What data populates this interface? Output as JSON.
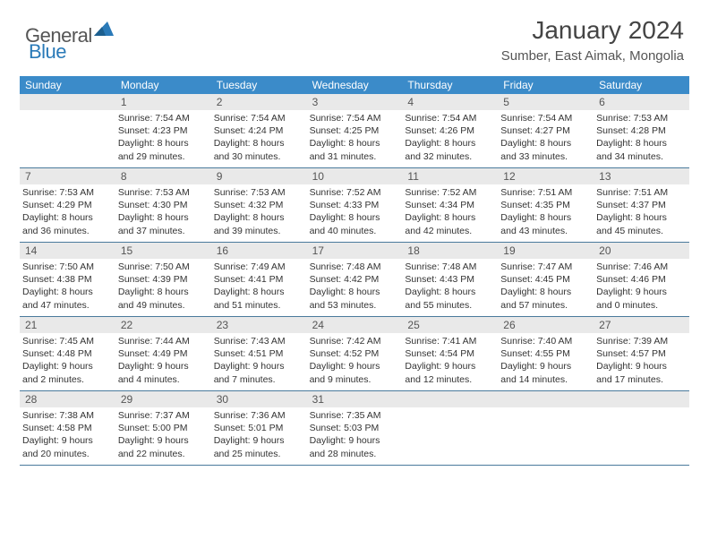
{
  "logo": {
    "general": "General",
    "blue": "Blue"
  },
  "title": "January 2024",
  "location": "Sumber, East Aimak, Mongolia",
  "colors": {
    "header_bg": "#3b8bc9",
    "header_text": "#ffffff",
    "daynum_bg": "#e9e9e9",
    "week_border": "#4a7a9c",
    "logo_gray": "#555555",
    "logo_blue": "#2a7ab8"
  },
  "day_names": [
    "Sunday",
    "Monday",
    "Tuesday",
    "Wednesday",
    "Thursday",
    "Friday",
    "Saturday"
  ],
  "weeks": [
    [
      {
        "day": "",
        "sunrise": "",
        "sunset": "",
        "daylight1": "",
        "daylight2": ""
      },
      {
        "day": "1",
        "sunrise": "Sunrise: 7:54 AM",
        "sunset": "Sunset: 4:23 PM",
        "daylight1": "Daylight: 8 hours",
        "daylight2": "and 29 minutes."
      },
      {
        "day": "2",
        "sunrise": "Sunrise: 7:54 AM",
        "sunset": "Sunset: 4:24 PM",
        "daylight1": "Daylight: 8 hours",
        "daylight2": "and 30 minutes."
      },
      {
        "day": "3",
        "sunrise": "Sunrise: 7:54 AM",
        "sunset": "Sunset: 4:25 PM",
        "daylight1": "Daylight: 8 hours",
        "daylight2": "and 31 minutes."
      },
      {
        "day": "4",
        "sunrise": "Sunrise: 7:54 AM",
        "sunset": "Sunset: 4:26 PM",
        "daylight1": "Daylight: 8 hours",
        "daylight2": "and 32 minutes."
      },
      {
        "day": "5",
        "sunrise": "Sunrise: 7:54 AM",
        "sunset": "Sunset: 4:27 PM",
        "daylight1": "Daylight: 8 hours",
        "daylight2": "and 33 minutes."
      },
      {
        "day": "6",
        "sunrise": "Sunrise: 7:53 AM",
        "sunset": "Sunset: 4:28 PM",
        "daylight1": "Daylight: 8 hours",
        "daylight2": "and 34 minutes."
      }
    ],
    [
      {
        "day": "7",
        "sunrise": "Sunrise: 7:53 AM",
        "sunset": "Sunset: 4:29 PM",
        "daylight1": "Daylight: 8 hours",
        "daylight2": "and 36 minutes."
      },
      {
        "day": "8",
        "sunrise": "Sunrise: 7:53 AM",
        "sunset": "Sunset: 4:30 PM",
        "daylight1": "Daylight: 8 hours",
        "daylight2": "and 37 minutes."
      },
      {
        "day": "9",
        "sunrise": "Sunrise: 7:53 AM",
        "sunset": "Sunset: 4:32 PM",
        "daylight1": "Daylight: 8 hours",
        "daylight2": "and 39 minutes."
      },
      {
        "day": "10",
        "sunrise": "Sunrise: 7:52 AM",
        "sunset": "Sunset: 4:33 PM",
        "daylight1": "Daylight: 8 hours",
        "daylight2": "and 40 minutes."
      },
      {
        "day": "11",
        "sunrise": "Sunrise: 7:52 AM",
        "sunset": "Sunset: 4:34 PM",
        "daylight1": "Daylight: 8 hours",
        "daylight2": "and 42 minutes."
      },
      {
        "day": "12",
        "sunrise": "Sunrise: 7:51 AM",
        "sunset": "Sunset: 4:35 PM",
        "daylight1": "Daylight: 8 hours",
        "daylight2": "and 43 minutes."
      },
      {
        "day": "13",
        "sunrise": "Sunrise: 7:51 AM",
        "sunset": "Sunset: 4:37 PM",
        "daylight1": "Daylight: 8 hours",
        "daylight2": "and 45 minutes."
      }
    ],
    [
      {
        "day": "14",
        "sunrise": "Sunrise: 7:50 AM",
        "sunset": "Sunset: 4:38 PM",
        "daylight1": "Daylight: 8 hours",
        "daylight2": "and 47 minutes."
      },
      {
        "day": "15",
        "sunrise": "Sunrise: 7:50 AM",
        "sunset": "Sunset: 4:39 PM",
        "daylight1": "Daylight: 8 hours",
        "daylight2": "and 49 minutes."
      },
      {
        "day": "16",
        "sunrise": "Sunrise: 7:49 AM",
        "sunset": "Sunset: 4:41 PM",
        "daylight1": "Daylight: 8 hours",
        "daylight2": "and 51 minutes."
      },
      {
        "day": "17",
        "sunrise": "Sunrise: 7:48 AM",
        "sunset": "Sunset: 4:42 PM",
        "daylight1": "Daylight: 8 hours",
        "daylight2": "and 53 minutes."
      },
      {
        "day": "18",
        "sunrise": "Sunrise: 7:48 AM",
        "sunset": "Sunset: 4:43 PM",
        "daylight1": "Daylight: 8 hours",
        "daylight2": "and 55 minutes."
      },
      {
        "day": "19",
        "sunrise": "Sunrise: 7:47 AM",
        "sunset": "Sunset: 4:45 PM",
        "daylight1": "Daylight: 8 hours",
        "daylight2": "and 57 minutes."
      },
      {
        "day": "20",
        "sunrise": "Sunrise: 7:46 AM",
        "sunset": "Sunset: 4:46 PM",
        "daylight1": "Daylight: 9 hours",
        "daylight2": "and 0 minutes."
      }
    ],
    [
      {
        "day": "21",
        "sunrise": "Sunrise: 7:45 AM",
        "sunset": "Sunset: 4:48 PM",
        "daylight1": "Daylight: 9 hours",
        "daylight2": "and 2 minutes."
      },
      {
        "day": "22",
        "sunrise": "Sunrise: 7:44 AM",
        "sunset": "Sunset: 4:49 PM",
        "daylight1": "Daylight: 9 hours",
        "daylight2": "and 4 minutes."
      },
      {
        "day": "23",
        "sunrise": "Sunrise: 7:43 AM",
        "sunset": "Sunset: 4:51 PM",
        "daylight1": "Daylight: 9 hours",
        "daylight2": "and 7 minutes."
      },
      {
        "day": "24",
        "sunrise": "Sunrise: 7:42 AM",
        "sunset": "Sunset: 4:52 PM",
        "daylight1": "Daylight: 9 hours",
        "daylight2": "and 9 minutes."
      },
      {
        "day": "25",
        "sunrise": "Sunrise: 7:41 AM",
        "sunset": "Sunset: 4:54 PM",
        "daylight1": "Daylight: 9 hours",
        "daylight2": "and 12 minutes."
      },
      {
        "day": "26",
        "sunrise": "Sunrise: 7:40 AM",
        "sunset": "Sunset: 4:55 PM",
        "daylight1": "Daylight: 9 hours",
        "daylight2": "and 14 minutes."
      },
      {
        "day": "27",
        "sunrise": "Sunrise: 7:39 AM",
        "sunset": "Sunset: 4:57 PM",
        "daylight1": "Daylight: 9 hours",
        "daylight2": "and 17 minutes."
      }
    ],
    [
      {
        "day": "28",
        "sunrise": "Sunrise: 7:38 AM",
        "sunset": "Sunset: 4:58 PM",
        "daylight1": "Daylight: 9 hours",
        "daylight2": "and 20 minutes."
      },
      {
        "day": "29",
        "sunrise": "Sunrise: 7:37 AM",
        "sunset": "Sunset: 5:00 PM",
        "daylight1": "Daylight: 9 hours",
        "daylight2": "and 22 minutes."
      },
      {
        "day": "30",
        "sunrise": "Sunrise: 7:36 AM",
        "sunset": "Sunset: 5:01 PM",
        "daylight1": "Daylight: 9 hours",
        "daylight2": "and 25 minutes."
      },
      {
        "day": "31",
        "sunrise": "Sunrise: 7:35 AM",
        "sunset": "Sunset: 5:03 PM",
        "daylight1": "Daylight: 9 hours",
        "daylight2": "and 28 minutes."
      },
      {
        "day": "",
        "sunrise": "",
        "sunset": "",
        "daylight1": "",
        "daylight2": ""
      },
      {
        "day": "",
        "sunrise": "",
        "sunset": "",
        "daylight1": "",
        "daylight2": ""
      },
      {
        "day": "",
        "sunrise": "",
        "sunset": "",
        "daylight1": "",
        "daylight2": ""
      }
    ]
  ]
}
